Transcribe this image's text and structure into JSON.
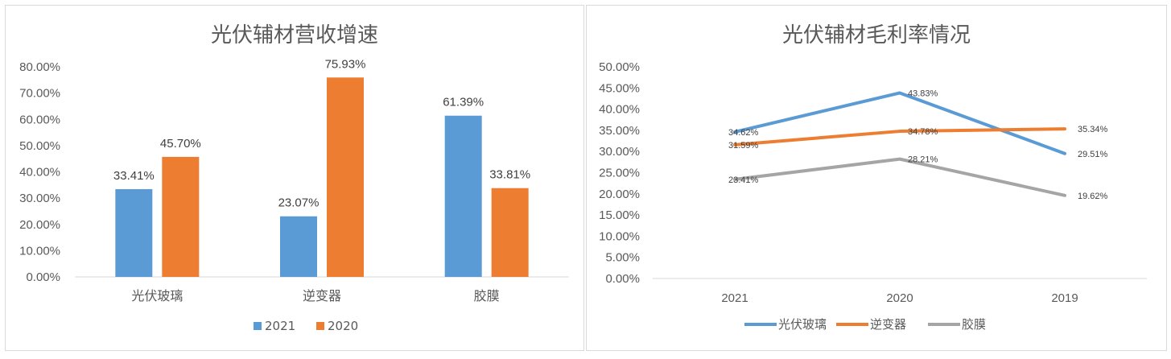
{
  "chart_data": [
    {
      "type": "bar",
      "title": "光伏辅材营收增速",
      "categories": [
        "光伏玻璃",
        "逆变器",
        "胶膜"
      ],
      "series": [
        {
          "name": "2021",
          "color": "#5b9bd5",
          "values": [
            33.41,
            23.07,
            61.39
          ],
          "labels": [
            "33.41%",
            "23.07%",
            "61.39%"
          ]
        },
        {
          "name": "2020",
          "color": "#ed7d31",
          "values": [
            45.7,
            75.93,
            33.81
          ],
          "labels": [
            "45.70%",
            "75.93%",
            "33.81%"
          ]
        }
      ],
      "ylim": [
        0,
        80
      ],
      "yticks": [
        "0.00%",
        "10.00%",
        "20.00%",
        "30.00%",
        "40.00%",
        "50.00%",
        "60.00%",
        "70.00%",
        "80.00%"
      ],
      "grid": false,
      "legend": "bottom"
    },
    {
      "type": "line",
      "title": "光伏辅材毛利率情况",
      "categories": [
        "2021",
        "2020",
        "2019"
      ],
      "series": [
        {
          "name": "光伏玻璃",
          "color": "#5b9bd5",
          "values": [
            34.62,
            43.83,
            29.51
          ],
          "labels": [
            "34.62%",
            "43.83%",
            "29.51%"
          ]
        },
        {
          "name": "逆变器",
          "color": "#ed7d31",
          "values": [
            31.59,
            34.78,
            35.34
          ],
          "labels": [
            "31.59%",
            "34.78%",
            "35.34%"
          ]
        },
        {
          "name": "胶膜",
          "color": "#a5a5a5",
          "values": [
            23.41,
            28.21,
            19.62
          ],
          "labels": [
            "23.41%",
            "28.21%",
            "19.62%"
          ]
        }
      ],
      "ylim": [
        0,
        50
      ],
      "yticks": [
        "0.00%",
        "5.00%",
        "10.00%",
        "15.00%",
        "20.00%",
        "25.00%",
        "30.00%",
        "35.00%",
        "40.00%",
        "45.00%",
        "50.00%"
      ],
      "grid": false,
      "legend": "bottom"
    }
  ]
}
